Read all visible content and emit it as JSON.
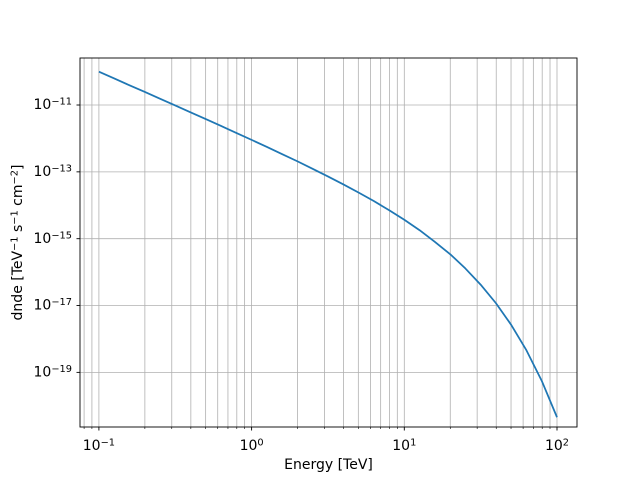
{
  "chart_data": {
    "type": "line",
    "title": "",
    "xlabel": "Energy [TeV]",
    "ylabel": "dnde [TeV⁻¹ s⁻¹ cm⁻²]",
    "ylabel_segments": [
      {
        "text": "dnde [TeV"
      },
      {
        "text": "−1",
        "sup": true
      },
      {
        "text": " s"
      },
      {
        "text": "−1",
        "sup": true
      },
      {
        "text": " cm"
      },
      {
        "text": "−2",
        "sup": true
      },
      {
        "text": "]"
      }
    ],
    "xscale": "log",
    "yscale": "log",
    "xlim": [
      0.0752,
      135.2
    ],
    "ylim": [
      2.32e-21,
      2.55e-10
    ],
    "x_major_ticks": [
      0.1,
      1,
      10,
      100
    ],
    "x_tick_exponents": [
      "−1",
      "0",
      "1",
      "2"
    ],
    "y_major_ticks": [
      1e-11,
      1e-13,
      1e-15,
      1e-17,
      1e-19
    ],
    "y_tick_exponents": [
      "−11",
      "−13",
      "−15",
      "−17",
      "−19"
    ],
    "grid": {
      "major": true,
      "minor_x": true,
      "minor_y": false,
      "color": "#b0b0b0"
    },
    "legend": null,
    "colors": {
      "line": "#1f77b4",
      "axes": "#000000",
      "background": "#ffffff"
    },
    "series": [
      {
        "name": "dnde",
        "color": "#1f77b4",
        "x": [
          0.1,
          0.126,
          0.158,
          0.2,
          0.251,
          0.316,
          0.398,
          0.501,
          0.631,
          0.794,
          1.0,
          1.26,
          1.58,
          2.0,
          2.51,
          3.16,
          3.98,
          5.01,
          6.31,
          7.94,
          10.0,
          12.6,
          15.8,
          20.0,
          25.1,
          31.6,
          39.8,
          50.1,
          63.1,
          79.4,
          100.0
        ],
        "y": [
          9.9e-11,
          6.23e-11,
          3.92e-11,
          2.46e-11,
          1.55e-11,
          9.69e-12,
          6.06e-12,
          3.79e-12,
          2.36e-12,
          1.46e-12,
          9.05e-13,
          5.56e-13,
          3.4e-13,
          2.06e-13,
          1.23e-13,
          7.29e-14,
          4.24e-14,
          2.41e-14,
          1.34e-14,
          7.16e-15,
          3.68e-15,
          1.79e-15,
          8.16e-16,
          3.42e-16,
          1.29e-16,
          4.23e-17,
          1.18e-17,
          2.65e-18,
          4.56e-19,
          5.63e-20,
          4.54e-21
        ]
      }
    ]
  }
}
